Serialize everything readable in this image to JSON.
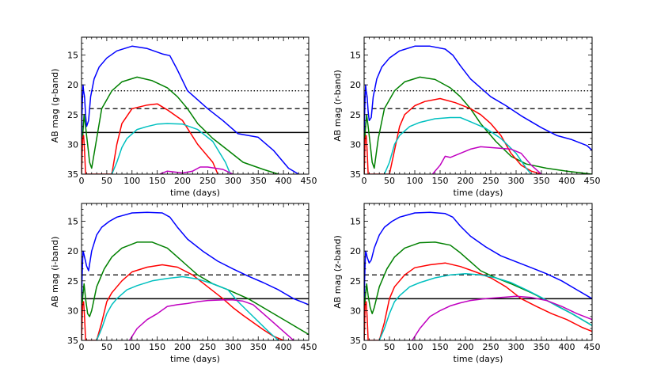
{
  "figure": {
    "title": ""
  },
  "colors": {
    "blue": "#0000ff",
    "green": "#008000",
    "red": "#ff0000",
    "cyan": "#00c0c0",
    "magenta": "#c000c0",
    "black": "#000000"
  },
  "chart_data": [
    {
      "type": "line",
      "title": "",
      "xlabel": "time (days)",
      "ylabel": "AB mag (g-band)",
      "xlim": [
        0,
        450
      ],
      "ylim": [
        35,
        12
      ],
      "xticks": [
        0,
        50,
        100,
        150,
        200,
        250,
        300,
        350,
        400,
        450
      ],
      "yticks": [
        15,
        20,
        25,
        30,
        35
      ],
      "hlines": [
        {
          "y": 21,
          "style": "dotted",
          "xmin": 15
        },
        {
          "y": 24,
          "style": "dashed",
          "xmin": 15
        },
        {
          "y": 28,
          "style": "solid"
        }
      ],
      "series": [
        {
          "name": "blue",
          "color": "#0000ff",
          "x": [
            0,
            1,
            2,
            3,
            4,
            6,
            8,
            10,
            14,
            18,
            25,
            35,
            50,
            70,
            100,
            130,
            160,
            175,
            190,
            210,
            250,
            280,
            310,
            350,
            380,
            410,
            430
          ],
          "y": [
            35,
            25,
            22,
            20,
            21,
            22,
            25,
            27,
            26,
            22,
            19,
            17,
            15.5,
            14.3,
            13.5,
            13.9,
            14.8,
            15.1,
            17.5,
            21,
            24,
            26,
            28.2,
            28.8,
            31,
            34,
            35
          ]
        },
        {
          "name": "green",
          "color": "#008000",
          "x": [
            0,
            2,
            5,
            8,
            12,
            16,
            20,
            28,
            40,
            60,
            80,
            110,
            140,
            170,
            190,
            210,
            230,
            260,
            290,
            320,
            360,
            390
          ],
          "y": [
            35,
            29,
            25,
            27,
            30,
            33,
            34,
            30,
            24,
            21,
            19.5,
            18.7,
            19.3,
            20.5,
            22,
            24,
            26.5,
            29,
            31,
            33,
            34.2,
            35
          ]
        },
        {
          "name": "red",
          "color": "#ff0000",
          "x": [
            0,
            2,
            4,
            6,
            8,
            10,
            60,
            70,
            80,
            100,
            130,
            150,
            170,
            200,
            230,
            260,
            270
          ],
          "y": [
            35,
            29,
            28.5,
            31,
            35,
            35,
            35,
            30,
            26.5,
            24,
            23.4,
            23.2,
            24.2,
            26,
            30,
            33,
            35
          ]
        },
        {
          "name": "cyan",
          "color": "#00c0c0",
          "x": [
            60,
            70,
            80,
            90,
            110,
            130,
            150,
            170,
            200,
            230,
            260,
            285,
            295
          ],
          "y": [
            35,
            33,
            30.5,
            29,
            27.5,
            27,
            26.6,
            26.5,
            26.6,
            27.5,
            29.5,
            33,
            35
          ]
        },
        {
          "name": "magenta",
          "color": "#c000c0",
          "x": [
            155,
            170,
            200,
            220,
            235,
            250,
            280,
            300
          ],
          "y": [
            35,
            34.5,
            34.8,
            34.5,
            33.8,
            33.8,
            34.2,
            35
          ]
        }
      ]
    },
    {
      "type": "line",
      "title": "",
      "xlabel": "time (days)",
      "ylabel": "AB mag (r-band)",
      "xlim": [
        0,
        450
      ],
      "ylim": [
        35,
        12
      ],
      "xticks": [
        0,
        50,
        100,
        150,
        200,
        250,
        300,
        350,
        400,
        450
      ],
      "yticks": [
        15,
        20,
        25,
        30,
        35
      ],
      "hlines": [
        {
          "y": 21,
          "style": "dotted",
          "xmin": 15
        },
        {
          "y": 24,
          "style": "dashed",
          "xmin": 15
        },
        {
          "y": 28,
          "style": "solid"
        }
      ],
      "series": [
        {
          "name": "blue",
          "color": "#0000ff",
          "x": [
            0,
            1,
            2,
            3,
            4,
            6,
            8,
            10,
            14,
            18,
            25,
            35,
            50,
            70,
            100,
            130,
            160,
            175,
            190,
            210,
            250,
            280,
            310,
            350,
            380,
            410,
            440,
            450
          ],
          "y": [
            35,
            25,
            22,
            20,
            21,
            22,
            24.5,
            26,
            25.5,
            22,
            19,
            17,
            15.5,
            14.3,
            13.5,
            13.5,
            14,
            15,
            16.8,
            19,
            22,
            23.5,
            25.2,
            27.2,
            28.5,
            29.2,
            30.2,
            31
          ]
        },
        {
          "name": "green",
          "color": "#008000",
          "x": [
            0,
            2,
            5,
            8,
            12,
            16,
            20,
            28,
            40,
            60,
            80,
            110,
            140,
            170,
            190,
            210,
            230,
            260,
            290,
            320,
            360,
            400,
            430,
            450
          ],
          "y": [
            35,
            28,
            25,
            27,
            30,
            33,
            34,
            29,
            24,
            21,
            19.5,
            18.7,
            19.1,
            20.5,
            22,
            24,
            26.5,
            29.5,
            32,
            33.3,
            34,
            34.5,
            34.8,
            35
          ]
        },
        {
          "name": "red",
          "color": "#ff0000",
          "x": [
            0,
            2,
            4,
            6,
            8,
            10,
            50,
            60,
            70,
            80,
            100,
            120,
            150,
            180,
            210,
            230,
            250,
            270,
            290,
            310,
            330,
            350
          ],
          "y": [
            35,
            29,
            28.5,
            31,
            35,
            35,
            35,
            31,
            27,
            25,
            23.5,
            22.8,
            22.3,
            23,
            24,
            25,
            26.5,
            28.5,
            31.5,
            33.5,
            34.5,
            35
          ]
        },
        {
          "name": "cyan",
          "color": "#00c0c0",
          "x": [
            40,
            50,
            60,
            70,
            90,
            110,
            140,
            170,
            190,
            210,
            240,
            270,
            300,
            320,
            330
          ],
          "y": [
            35,
            33,
            30,
            28.5,
            27,
            26.3,
            25.7,
            25.5,
            25.5,
            26.2,
            27.3,
            29,
            31.5,
            34,
            35
          ]
        },
        {
          "name": "magenta",
          "color": "#c000c0",
          "x": [
            135,
            150,
            160,
            170,
            190,
            210,
            230,
            260,
            290,
            310,
            330,
            350
          ],
          "y": [
            35,
            33.5,
            32,
            32.2,
            31.5,
            30.8,
            30.4,
            30.6,
            30.8,
            31.5,
            33.5,
            35
          ]
        }
      ]
    },
    {
      "type": "line",
      "title": "",
      "xlabel": "time (days)",
      "ylabel": "AB mag (i-band)",
      "xlim": [
        0,
        450
      ],
      "ylim": [
        35,
        12
      ],
      "xticks": [
        0,
        50,
        100,
        150,
        200,
        250,
        300,
        350,
        400,
        450
      ],
      "yticks": [
        15,
        20,
        25,
        30,
        35
      ],
      "hlines": [
        {
          "y": 24,
          "style": "dashed"
        },
        {
          "y": 28,
          "style": "solid"
        }
      ],
      "series": [
        {
          "name": "blue",
          "color": "#0000ff",
          "x": [
            0,
            1,
            2,
            3,
            4,
            6,
            10,
            14,
            20,
            30,
            40,
            55,
            70,
            100,
            130,
            160,
            175,
            190,
            210,
            240,
            270,
            300,
            330,
            360,
            390,
            420,
            450
          ],
          "y": [
            35,
            25,
            22,
            20,
            20.3,
            21,
            22.5,
            23.3,
            20,
            17.3,
            16,
            15,
            14.3,
            13.6,
            13.5,
            13.6,
            14.3,
            16,
            18,
            20,
            21.7,
            23,
            24.2,
            25.3,
            26.5,
            28,
            29
          ]
        },
        {
          "name": "green",
          "color": "#008000",
          "x": [
            0,
            2,
            5,
            8,
            12,
            16,
            20,
            30,
            45,
            60,
            80,
            110,
            140,
            170,
            190,
            210,
            230,
            260,
            290,
            330,
            370,
            410,
            450
          ],
          "y": [
            35,
            28,
            25.5,
            28,
            30.5,
            31,
            30,
            26,
            23,
            21,
            19.5,
            18.5,
            18.5,
            19.5,
            21,
            22.5,
            24,
            25.5,
            26.5,
            28,
            30,
            32,
            34
          ]
        },
        {
          "name": "red",
          "color": "#ff0000",
          "x": [
            0,
            2,
            4,
            6,
            8,
            10,
            30,
            40,
            50,
            60,
            80,
            100,
            130,
            160,
            190,
            220,
            250,
            280,
            300,
            320,
            340,
            360,
            380,
            400
          ],
          "y": [
            35,
            29,
            28.5,
            31,
            35,
            35,
            35,
            32,
            28.5,
            27,
            25,
            23.5,
            22.7,
            22.3,
            22.7,
            24,
            26,
            28,
            29.5,
            30.8,
            32,
            33.2,
            34.3,
            35
          ]
        },
        {
          "name": "cyan",
          "color": "#00c0c0",
          "x": [
            30,
            40,
            50,
            60,
            70,
            90,
            110,
            140,
            170,
            200,
            230,
            260,
            290,
            310,
            340,
            370,
            390
          ],
          "y": [
            35,
            33,
            30.5,
            29,
            28,
            26.5,
            25.8,
            25,
            24.6,
            24.3,
            24.7,
            25.5,
            26.5,
            28.5,
            31,
            33.5,
            35
          ]
        },
        {
          "name": "magenta",
          "color": "#c000c0",
          "x": [
            95,
            110,
            130,
            150,
            170,
            190,
            210,
            230,
            250,
            280,
            300,
            320,
            340,
            360,
            380,
            400,
            420
          ],
          "y": [
            35,
            33,
            31.5,
            30.5,
            29.3,
            29,
            28.8,
            28.5,
            28.3,
            28.2,
            28.2,
            28.4,
            29,
            30.5,
            32,
            33.5,
            35
          ]
        }
      ]
    },
    {
      "type": "line",
      "title": "",
      "xlabel": "time (days)",
      "ylabel": "AB mag (z-band)",
      "xlim": [
        0,
        450
      ],
      "ylim": [
        35,
        12
      ],
      "xticks": [
        0,
        50,
        100,
        150,
        200,
        250,
        300,
        350,
        400,
        450
      ],
      "yticks": [
        15,
        20,
        25,
        30,
        35
      ],
      "hlines": [
        {
          "y": 24,
          "style": "dashed"
        },
        {
          "y": 28,
          "style": "solid"
        }
      ],
      "series": [
        {
          "name": "blue",
          "color": "#0000ff",
          "x": [
            0,
            1,
            2,
            3,
            4,
            6,
            10,
            14,
            20,
            30,
            40,
            55,
            70,
            100,
            130,
            160,
            175,
            190,
            210,
            240,
            270,
            300,
            330,
            360,
            390,
            420,
            450
          ],
          "y": [
            35,
            25,
            22,
            20,
            20.3,
            21,
            22,
            21.5,
            19.5,
            17.3,
            16,
            15,
            14.3,
            13.6,
            13.5,
            13.7,
            14.3,
            15.8,
            17.5,
            19.3,
            20.8,
            21.8,
            22.8,
            23.8,
            25,
            26.5,
            28
          ]
        },
        {
          "name": "green",
          "color": "#008000",
          "x": [
            0,
            2,
            5,
            8,
            12,
            16,
            20,
            30,
            45,
            60,
            80,
            110,
            140,
            170,
            190,
            210,
            230,
            260,
            290,
            330,
            370,
            410,
            450
          ],
          "y": [
            35,
            28,
            25.5,
            27.5,
            29.5,
            30.5,
            29.5,
            26,
            23,
            21,
            19.5,
            18.6,
            18.5,
            19,
            20.3,
            21.8,
            23.3,
            24.5,
            25.5,
            27,
            28.7,
            30.5,
            32.5
          ]
        },
        {
          "name": "red",
          "color": "#ff0000",
          "x": [
            0,
            2,
            4,
            6,
            8,
            10,
            30,
            40,
            50,
            60,
            80,
            100,
            130,
            160,
            190,
            220,
            250,
            280,
            310,
            340,
            370,
            400,
            430,
            450
          ],
          "y": [
            35,
            29,
            28.5,
            31,
            35,
            35,
            35,
            32,
            28,
            26,
            24,
            22.8,
            22.3,
            22,
            22.6,
            23.5,
            24.5,
            26,
            28,
            29.3,
            30.5,
            31.5,
            32.8,
            33.5
          ]
        },
        {
          "name": "cyan",
          "color": "#00c0c0",
          "x": [
            30,
            40,
            50,
            60,
            70,
            90,
            110,
            140,
            170,
            200,
            230,
            260,
            290,
            320,
            350,
            380,
            410,
            440,
            450
          ],
          "y": [
            35,
            33,
            30.5,
            28.5,
            27.5,
            26,
            25.3,
            24.5,
            24,
            23.8,
            24,
            24.5,
            25.3,
            26.5,
            27.8,
            29.2,
            30.5,
            32,
            32.5
          ]
        },
        {
          "name": "magenta",
          "color": "#c000c0",
          "x": [
            95,
            110,
            130,
            150,
            170,
            190,
            210,
            240,
            270,
            300,
            330,
            360,
            390,
            420,
            450
          ],
          "y": [
            35,
            33,
            31,
            30,
            29.2,
            28.7,
            28.3,
            28,
            27.8,
            27.6,
            27.8,
            28.3,
            29.3,
            30.5,
            31.5
          ]
        }
      ]
    }
  ]
}
